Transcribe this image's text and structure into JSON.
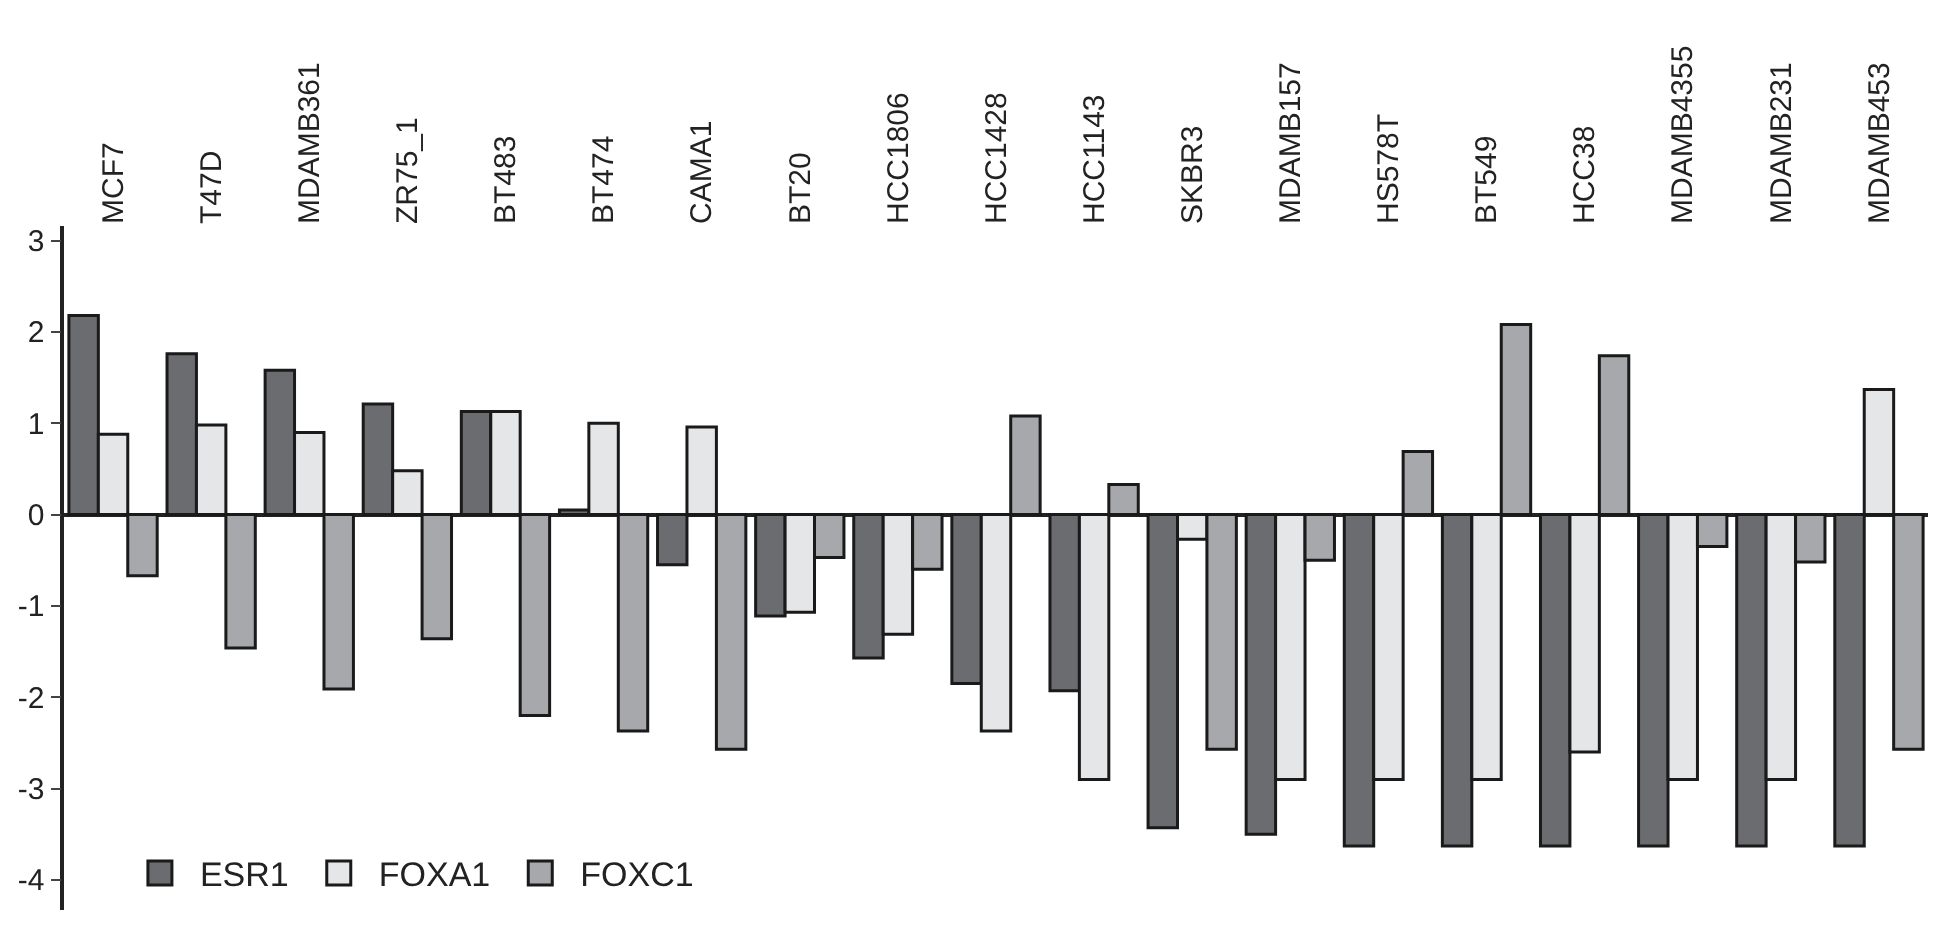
{
  "chart_data": {
    "type": "bar",
    "categories": [
      "MCF7",
      "T47D",
      "MDAMB361",
      "ZR75_1",
      "BT483",
      "BT474",
      "CAMA1",
      "BT20",
      "HCC1806",
      "HCC1428",
      "HCC1143",
      "SKBR3",
      "MDAMB157",
      "HS578T",
      "BT549",
      "HCC38",
      "MDAMB4355",
      "MDAMB231",
      "MDAMB453"
    ],
    "series": [
      {
        "name": "ESR1",
        "color": "#6b6c70",
        "values": [
          2.18,
          1.76,
          1.58,
          1.21,
          1.13,
          0.05,
          -0.55,
          -1.11,
          -1.57,
          -1.85,
          -1.93,
          -3.43,
          -3.5,
          -3.63,
          -3.63,
          -3.63,
          -3.63,
          -3.63,
          -3.63
        ]
      },
      {
        "name": "FOXA1",
        "color": "#e5e6e8",
        "values": [
          0.88,
          0.98,
          0.9,
          0.48,
          1.13,
          1.0,
          0.96,
          -1.07,
          -1.31,
          -2.37,
          -2.9,
          -0.27,
          -2.9,
          -2.9,
          -2.9,
          -2.6,
          -2.9,
          -2.9,
          1.37
        ]
      },
      {
        "name": "FOXC1",
        "color": "#a7a8ab",
        "values": [
          -0.67,
          -1.46,
          -1.91,
          -1.36,
          -2.2,
          -2.37,
          -2.57,
          -0.47,
          -0.6,
          1.08,
          0.33,
          -2.57,
          -0.5,
          0.69,
          2.08,
          1.74,
          -0.35,
          -0.52,
          -2.57
        ]
      }
    ],
    "ylim": [
      -4.33,
      3.16
    ],
    "yticks": [
      -4,
      -3,
      -2,
      -1,
      0,
      1,
      2,
      3
    ],
    "legend": "bottom left"
  }
}
